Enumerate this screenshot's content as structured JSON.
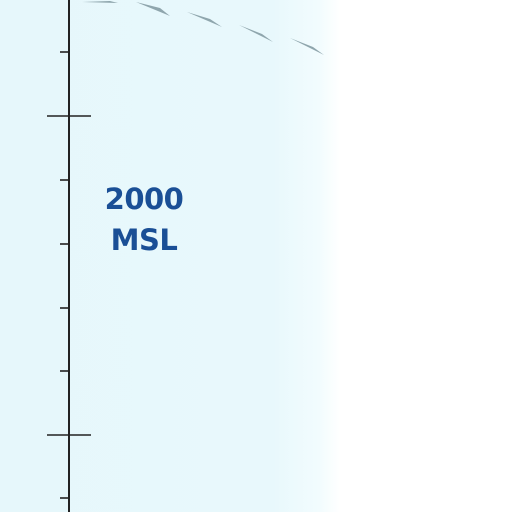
{
  "map": {
    "colors": {
      "airspace_tint": "#e6f7fb",
      "label": "#1a4f96",
      "scale_line": "#222222",
      "boundary_tick": "#8fa6ad"
    },
    "altitude_label": {
      "value": "2000",
      "reference": "MSL"
    },
    "scale_bar": {
      "orientation": "vertical",
      "minor_ticks": 8,
      "major_ticks": 2
    },
    "boundary": {
      "style": "tick-marked airspace boundary",
      "tick_count": 5
    }
  }
}
